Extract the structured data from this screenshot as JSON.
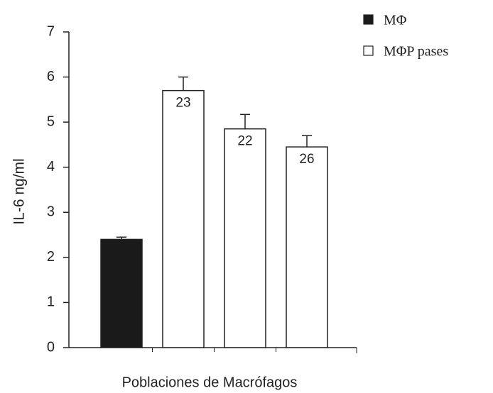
{
  "chart_data": {
    "type": "bar",
    "ylabel": "IL-6 ng/ml",
    "xlabel": "Poblaciones de Macrófagos",
    "categories": [
      null,
      null,
      null,
      null
    ],
    "series": [
      {
        "name": "MΦ",
        "color": "#1a1a1a",
        "values": [
          2.4,
          null,
          null,
          null
        ],
        "errors": [
          0.05,
          null,
          null,
          null
        ],
        "labels": [
          null,
          null,
          null,
          null
        ]
      },
      {
        "name": "MΦP pases",
        "color": "#ffffff",
        "values": [
          null,
          5.7,
          4.85,
          4.45
        ],
        "errors": [
          null,
          0.3,
          0.32,
          0.25
        ],
        "labels": [
          null,
          23,
          22,
          26
        ]
      }
    ],
    "ylim": [
      0,
      7
    ],
    "yticks": [
      0,
      1,
      2,
      3,
      4,
      5,
      6,
      7
    ],
    "legend": "top-right",
    "grid": false
  }
}
